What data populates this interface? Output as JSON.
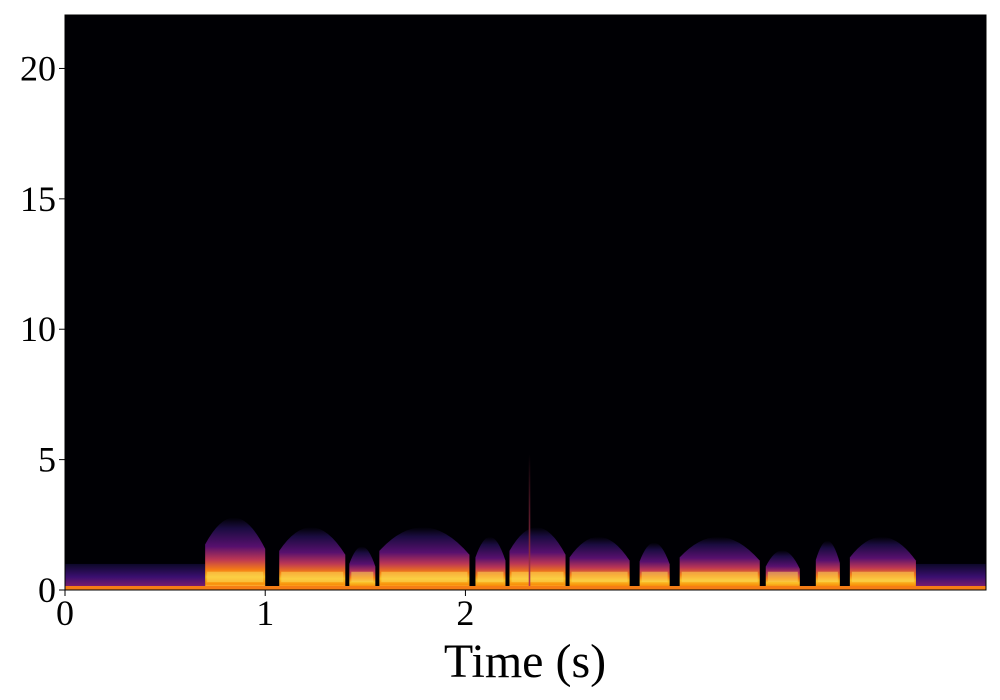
{
  "chart_data": {
    "type": "heatmap",
    "subtype": "spectrogram",
    "colormap": "inferno",
    "xlabel": "Time (s)",
    "ylabel": "",
    "xlim": [
      0,
      4.6
    ],
    "ylim": [
      0,
      22.05
    ],
    "x_ticks": [
      0,
      1,
      2
    ],
    "x_tick_labels": [
      "0",
      "1",
      "2"
    ],
    "y_ticks": [
      0,
      5,
      10,
      15,
      20
    ],
    "y_tick_labels": [
      "0",
      "5",
      "10",
      "15",
      "20"
    ],
    "grid": false,
    "background_color": "#000004",
    "noise_floor": [
      {
        "start": 0.0,
        "end": 0.7,
        "max_freq": 1.0
      },
      {
        "start": 4.25,
        "end": 4.6,
        "max_freq": 1.0
      }
    ],
    "segments": [
      {
        "start": 0.7,
        "end": 1.0,
        "max_freq": 3.5
      },
      {
        "start": 1.07,
        "end": 1.4,
        "max_freq": 3.0
      },
      {
        "start": 1.42,
        "end": 1.55,
        "max_freq": 2.0
      },
      {
        "start": 1.57,
        "end": 2.02,
        "max_freq": 3.0
      },
      {
        "start": 2.05,
        "end": 2.2,
        "max_freq": 2.5
      },
      {
        "start": 2.22,
        "end": 2.5,
        "max_freq": 3.0
      },
      {
        "start": 2.52,
        "end": 2.82,
        "max_freq": 2.5
      },
      {
        "start": 2.87,
        "end": 3.02,
        "max_freq": 2.2
      },
      {
        "start": 3.07,
        "end": 3.47,
        "max_freq": 2.5
      },
      {
        "start": 3.5,
        "end": 3.67,
        "max_freq": 1.8
      },
      {
        "start": 3.75,
        "end": 3.87,
        "max_freq": 2.3
      },
      {
        "start": 3.92,
        "end": 4.25,
        "max_freq": 2.5
      }
    ],
    "transients": [
      {
        "time": 2.32,
        "max_freq": 5.2
      }
    ]
  }
}
